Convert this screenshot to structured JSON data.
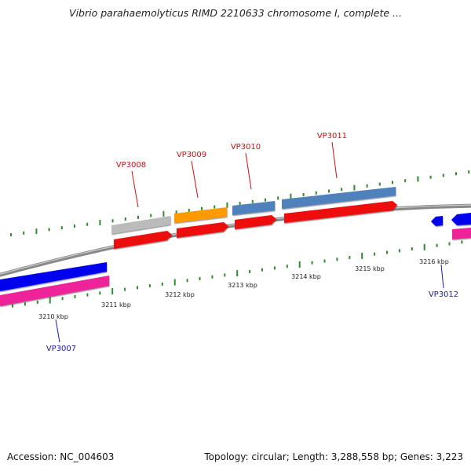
{
  "title": "Vibrio parahaemolyticus RIMD 2210633 chromosome I, complete ...",
  "footer": {
    "accession": "Accession: NC_004603",
    "topology": "Topology: circular; Length: 3,288,558 bp; Genes: 3,223"
  },
  "ticks": [
    {
      "label": "3210 kbp"
    },
    {
      "label": "3211 kbp"
    },
    {
      "label": "3212 kbp"
    },
    {
      "label": "3213 kbp"
    },
    {
      "label": "3214 kbp"
    },
    {
      "label": "3215 kbp"
    },
    {
      "label": "3216 kbp"
    }
  ],
  "gene_labels": [
    {
      "id": "VP3007",
      "strand": "reverse",
      "color": "#1a1aa6"
    },
    {
      "id": "VP3008",
      "strand": "forward",
      "color": "#cc1111"
    },
    {
      "id": "VP3009",
      "strand": "forward",
      "color": "#cc1111"
    },
    {
      "id": "VP3010",
      "strand": "forward",
      "color": "#cc1111"
    },
    {
      "id": "VP3011",
      "strand": "forward",
      "color": "#cc1111"
    },
    {
      "id": "VP3012",
      "strand": "reverse",
      "color": "#1a1aa6"
    }
  ],
  "colors": {
    "backbone": "#888888",
    "tick": "#2e8b2e",
    "forward_cds": "#ee1111",
    "reverse_cds": "#0000ee",
    "pink_track": "#ee2299",
    "gray_feature": "#bbbbbb",
    "orange_feature": "#ff9900",
    "steel_feature": "#4f81bd"
  }
}
